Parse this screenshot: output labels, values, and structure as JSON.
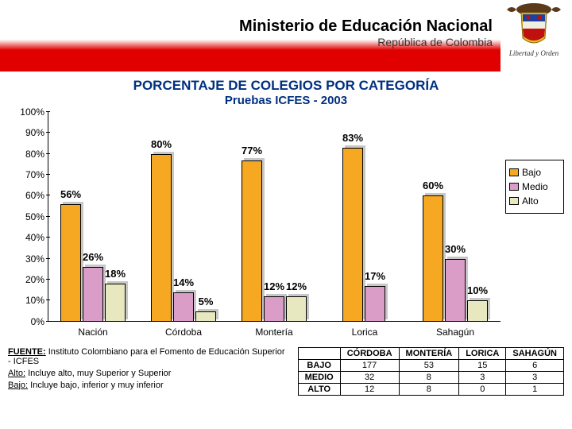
{
  "header": {
    "title": "Ministerio de Educación Nacional",
    "subtitle": "República de Colombia",
    "crest_caption": "Libertad y Orden"
  },
  "chart": {
    "type": "bar",
    "title_line1": "PORCENTAJE DE COLEGIOS POR CATEGORÍA",
    "title_line2": "Pruebas ICFES - 2003",
    "title_color": "#003080",
    "ylim": [
      0,
      100
    ],
    "ytick_step": 10,
    "y_suffix": "%",
    "categories": [
      "Nación",
      "Córdoba",
      "Montería",
      "Lorica",
      "Sahagún"
    ],
    "series": [
      {
        "name": "Bajo",
        "color": "#f7a823",
        "values": [
          56,
          80,
          77,
          83,
          60
        ]
      },
      {
        "name": "Medio",
        "color": "#d99dc8",
        "values": [
          26,
          14,
          12,
          17,
          30
        ]
      },
      {
        "name": "Alto",
        "color": "#e8e8c0",
        "values": [
          18,
          5,
          12,
          0,
          10
        ]
      }
    ],
    "bar_border": "#000000",
    "shadow_color": "#c7c7c7",
    "background": "#ffffff"
  },
  "footer": {
    "source_label": "FUENTE:",
    "source_text": "Instituto Colombiano para el Fomento de Educación Superior - ICFES",
    "note1_label": "Alto:",
    "note1_text": "Incluye alto, muy Superior y Superior",
    "note2_label": "Bajo:",
    "note2_text": "Incluye bajo, inferior y muy inferior"
  },
  "table": {
    "columns": [
      "",
      "CÓRDOBA",
      "MONTERÍA",
      "LORICA",
      "SAHAGÚN"
    ],
    "rows": [
      [
        "BAJO",
        "177",
        "53",
        "15",
        "6"
      ],
      [
        "MEDIO",
        "32",
        "8",
        "3",
        "3"
      ],
      [
        "ALTO",
        "12",
        "8",
        "0",
        "1"
      ]
    ]
  }
}
